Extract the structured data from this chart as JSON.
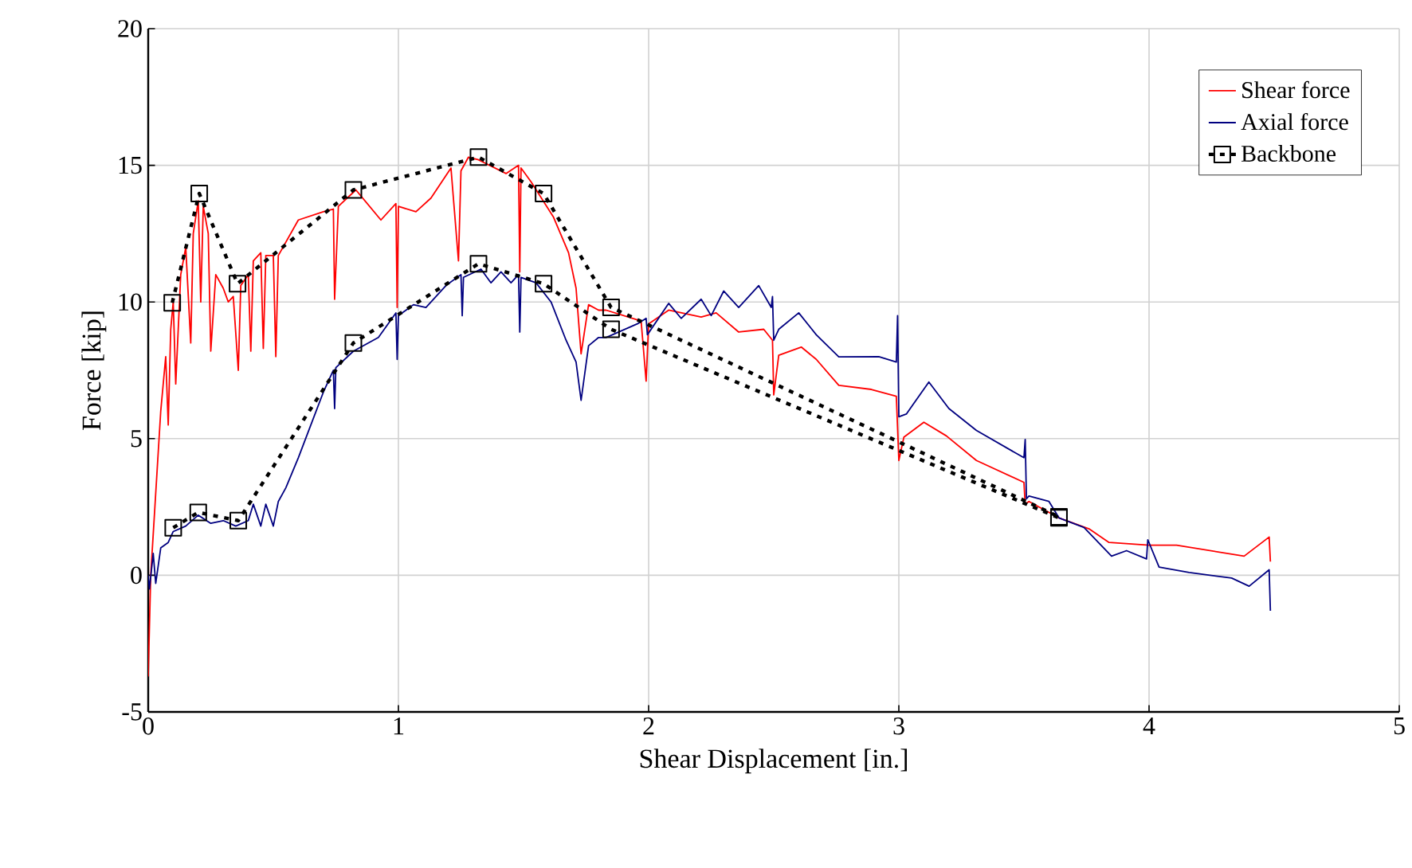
{
  "chart_data": {
    "type": "line",
    "xlabel": "Shear Displacement [in.]",
    "ylabel": "Force [kip]",
    "xlim": [
      0,
      5
    ],
    "ylim": [
      -5,
      20
    ],
    "xticks": [
      0,
      1,
      2,
      3,
      4,
      5
    ],
    "yticks": [
      -5,
      0,
      5,
      10,
      15,
      20
    ],
    "grid": true,
    "legend": "top right",
    "series": [
      {
        "name": "Shear force",
        "color": "#ff0000",
        "x": [
          0,
          0.01,
          0.03,
          0.05,
          0.07,
          0.08,
          0.09,
          0.1,
          0.11,
          0.13,
          0.15,
          0.17,
          0.18,
          0.2,
          0.21,
          0.22,
          0.24,
          0.25,
          0.27,
          0.3,
          0.32,
          0.34,
          0.36,
          0.37,
          0.4,
          0.41,
          0.42,
          0.45,
          0.46,
          0.47,
          0.5,
          0.51,
          0.52,
          0.6,
          0.7,
          0.74,
          0.745,
          0.76,
          0.83,
          0.93,
          0.99,
          0.995,
          1.0,
          1.07,
          1.13,
          1.21,
          1.24,
          1.25,
          1.28,
          1.32,
          1.43,
          1.48,
          1.485,
          1.49,
          1.53,
          1.62,
          1.68,
          1.71,
          1.73,
          1.76,
          1.8,
          1.83,
          1.97,
          1.99,
          2.0,
          2.08,
          2.21,
          2.27,
          2.36,
          2.46,
          2.495,
          2.5,
          2.52,
          2.61,
          2.67,
          2.76,
          2.89,
          2.99,
          3.0,
          3.02,
          3.1,
          3.19,
          3.31,
          3.5,
          3.505,
          3.52,
          3.64,
          3.76,
          3.84,
          4.0,
          4.11,
          4.38,
          4.48,
          4.485
        ],
        "values": [
          -3.7,
          0,
          3,
          6,
          8,
          5.5,
          9,
          10,
          7,
          11,
          12,
          8.5,
          12.5,
          13.7,
          10,
          13.5,
          12.5,
          8.2,
          11,
          10.5,
          10,
          10.2,
          7.5,
          10.6,
          11,
          8.2,
          11.5,
          11.8,
          8.3,
          11.7,
          11.7,
          8,
          11.7,
          13,
          13.3,
          13.4,
          10.1,
          13.5,
          14.1,
          13,
          13.6,
          9.8,
          13.5,
          13.3,
          13.8,
          14.9,
          11.5,
          14.8,
          15.3,
          15.2,
          14.7,
          15,
          11.1,
          14.9,
          14.4,
          13.1,
          11.8,
          10.5,
          8.1,
          9.9,
          9.7,
          9.7,
          9.3,
          7.1,
          9.2,
          9.7,
          9.45,
          9.6,
          8.9,
          9,
          8.6,
          6.6,
          8.05,
          8.35,
          7.9,
          6.95,
          6.8,
          6.55,
          4.2,
          5.05,
          5.6,
          5.1,
          4.2,
          3.4,
          2.6,
          2.7,
          2.1,
          1.7,
          1.2,
          1.1,
          1.1,
          0.7,
          1.4,
          0.5
        ]
      },
      {
        "name": "Axial force",
        "color": "#000080",
        "x": [
          0,
          0.005,
          0.02,
          0.03,
          0.05,
          0.08,
          0.1,
          0.15,
          0.2,
          0.25,
          0.3,
          0.35,
          0.4,
          0.42,
          0.45,
          0.47,
          0.5,
          0.52,
          0.55,
          0.6,
          0.65,
          0.7,
          0.74,
          0.745,
          0.75,
          0.82,
          0.92,
          0.99,
          0.995,
          1.0,
          1.06,
          1.11,
          1.19,
          1.25,
          1.255,
          1.26,
          1.33,
          1.37,
          1.41,
          1.45,
          1.48,
          1.485,
          1.49,
          1.55,
          1.61,
          1.67,
          1.71,
          1.73,
          1.76,
          1.8,
          1.83,
          1.955,
          1.99,
          1.995,
          2.08,
          2.13,
          2.21,
          2.25,
          2.3,
          2.36,
          2.44,
          2.49,
          2.495,
          2.5,
          2.52,
          2.6,
          2.67,
          2.76,
          2.92,
          2.99,
          2.995,
          3.0,
          3.03,
          3.12,
          3.2,
          3.31,
          3.5,
          3.505,
          3.51,
          3.52,
          3.6,
          3.64,
          3.74,
          3.85,
          3.91,
          3.99,
          3.995,
          4.04,
          4.16,
          4.33,
          4.4,
          4.48,
          4.485
        ],
        "values": [
          0,
          -0.5,
          0.8,
          -0.3,
          1.0,
          1.2,
          1.6,
          1.8,
          2.2,
          1.9,
          2.0,
          1.8,
          2.0,
          2.6,
          1.8,
          2.6,
          1.8,
          2.7,
          3.2,
          4.3,
          5.5,
          6.7,
          7.5,
          6.1,
          7.6,
          8.2,
          8.7,
          9.6,
          7.9,
          9.5,
          9.9,
          9.8,
          10.6,
          11.0,
          9.5,
          10.9,
          11.2,
          10.7,
          11.1,
          10.7,
          11.0,
          8.9,
          10.9,
          10.7,
          10.0,
          8.6,
          7.8,
          6.4,
          8.4,
          8.7,
          8.7,
          9.2,
          9.4,
          8.8,
          9.95,
          9.4,
          10.1,
          9.5,
          10.4,
          9.8,
          10.6,
          9.8,
          10.2,
          8.6,
          9.0,
          9.6,
          8.8,
          7.99,
          8.0,
          7.8,
          9.5,
          5.8,
          5.9,
          7.07,
          6.1,
          5.3,
          4.3,
          4.97,
          2.8,
          2.9,
          2.7,
          2.1,
          1.75,
          0.7,
          0.9,
          0.6,
          1.3,
          0.3,
          0.1,
          -0.1,
          -0.4,
          0.2,
          -1.3
        ]
      },
      {
        "name": "Backbone",
        "color": "#000000",
        "marker": "square",
        "line_style": "dotted",
        "x": [
          0.096,
          0.204,
          0.357,
          0.82,
          1.32,
          1.58,
          1.85,
          3.64
        ],
        "values": [
          9.97,
          13.97,
          10.67,
          14.1,
          15.3,
          13.97,
          9.8,
          2.14
        ]
      },
      {
        "color": "#000000",
        "marker": "square",
        "line_style": "dotted",
        "x": [
          0.1,
          0.2,
          0.36,
          0.82,
          1.32,
          1.58,
          1.85,
          3.64
        ],
        "values": [
          1.74,
          2.3,
          2.0,
          8.5,
          11.4,
          10.67,
          9.0,
          2.1
        ]
      }
    ]
  }
}
